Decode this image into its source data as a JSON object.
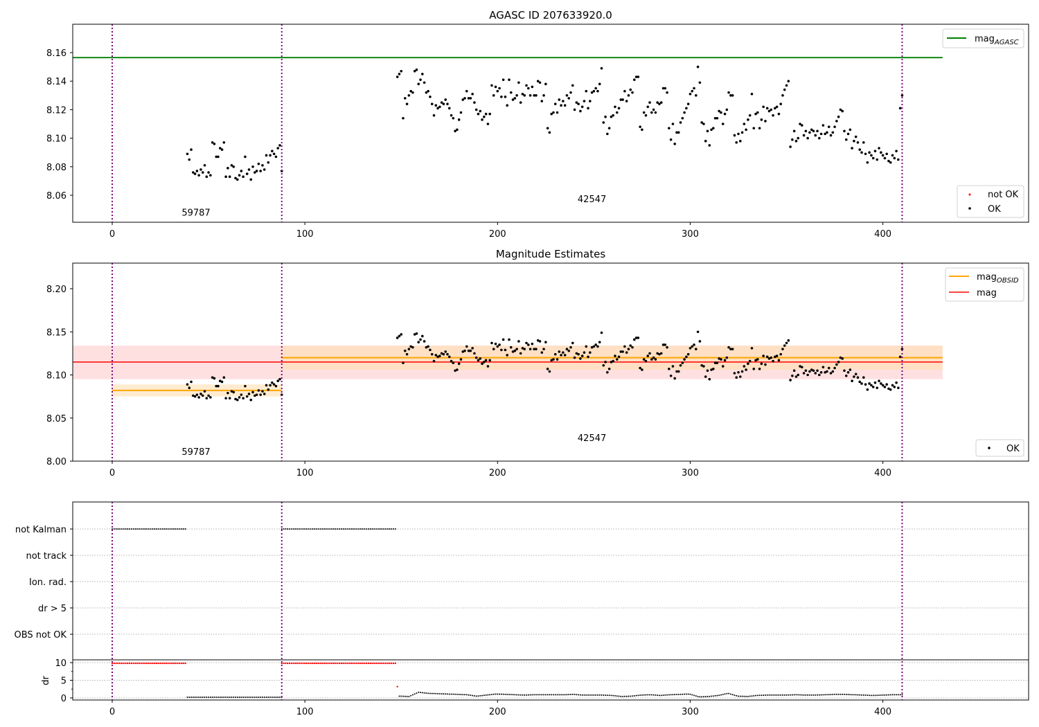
{
  "colors": {
    "ok": "#000000",
    "not_ok": "#ff0000",
    "agasc": "#008000",
    "obsid": "#ffa500",
    "mag": "#ff0000",
    "obs_lines": "#800080",
    "band_mag": "#ffcccc",
    "band_obsid": "#ffe0b0"
  },
  "chart_data": [
    {
      "type": "scatter",
      "title": "AGASC ID 207633920.0",
      "xlim": [
        -20.5,
        476
      ],
      "ylim": [
        8.041,
        8.18
      ],
      "xticks": [
        0,
        100,
        200,
        300,
        400
      ],
      "yticks": [
        "8.06",
        "8.08",
        "8.10",
        "8.12",
        "8.14",
        "8.16"
      ],
      "obs_boundaries": [
        0,
        88,
        410
      ],
      "mag_agasc": 8.1565,
      "mag_agasc_xrange": [
        -20.5,
        431
      ],
      "annotations": [
        {
          "text": "59787",
          "x": 43.5,
          "y": 8.048
        },
        {
          "text": "42547",
          "x": 249,
          "y": 8.0576
        }
      ],
      "legend_top": {
        "line_label": "mag",
        "line_sub": "AGASC"
      },
      "legend_bottom": [
        {
          "label": "not OK"
        },
        {
          "label": "OK"
        }
      ],
      "segments": [
        {
          "x_start": 39,
          "values": [
            8.089,
            8.085,
            8.092,
            8.076,
            8.075,
            8.077,
            8.074,
            8.078,
            8.076,
            8.081,
            8.073,
            8.076,
            8.074,
            8.097,
            8.096,
            8.087,
            8.087,
            8.093,
            8.092,
            8.097,
            8.073,
            8.079,
            8.073,
            8.081,
            8.08,
            8.072,
            8.071,
            8.074,
            8.077,
            8.073,
            8.087,
            8.075,
            8.078,
            8.071,
            8.08,
            8.076,
            8.077,
            8.082,
            8.077,
            8.081,
            8.078,
            8.088,
            8.083,
            8.088,
            8.091,
            8.089,
            8.087,
            8.093,
            8.095,
            8.077
          ]
        },
        {
          "x_start": 148,
          "values": [
            8.143,
            8.145,
            8.147,
            8.114,
            8.128,
            8.124,
            8.13,
            8.133,
            8.132,
            8.147,
            8.148,
            8.138,
            8.141,
            8.145,
            8.139,
            8.132,
            8.133,
            8.129,
            8.124,
            8.116,
            8.123,
            8.121,
            8.122,
            8.125,
            8.124,
            8.127,
            8.124,
            8.121,
            8.116,
            8.114,
            8.105,
            8.106,
            8.113,
            8.118,
            8.127,
            8.128,
            8.133,
            8.128,
            8.128,
            8.131,
            8.125,
            8.12,
            8.117,
            8.119,
            8.113,
            8.115,
            8.117,
            8.11,
            8.117,
            8.137,
            8.13,
            8.136,
            8.133,
            8.135,
            8.129,
            8.141,
            8.129,
            8.123,
            8.141,
            8.132,
            8.127,
            8.128,
            8.13,
            8.139,
            8.125,
            8.131,
            8.13,
            8.137,
            8.135,
            8.13,
            8.136,
            8.13,
            8.13,
            8.14,
            8.139,
            8.126,
            8.13,
            8.138,
            8.107,
            8.104,
            8.117,
            8.118,
            8.124,
            8.118,
            8.127,
            8.123,
            8.126,
            8.123,
            8.13,
            8.128,
            8.132,
            8.137,
            8.12,
            8.125,
            8.124,
            8.119,
            8.122,
            8.126,
            8.133,
            8.121,
            8.126,
            8.132,
            8.133,
            8.135,
            8.133,
            8.138,
            8.149,
            8.111,
            8.115,
            8.103,
            8.107,
            8.115,
            8.116,
            8.122,
            8.118,
            8.121,
            8.127,
            8.127,
            8.133,
            8.126,
            8.13,
            8.134,
            8.132,
            8.141,
            8.143,
            8.143,
            8.108,
            8.106,
            8.118,
            8.116,
            8.122,
            8.125,
            8.118,
            8.12,
            8.118,
            8.125,
            8.124,
            8.125,
            8.135,
            8.135,
            8.132,
            8.107,
            8.099,
            8.11,
            8.096,
            8.104,
            8.104,
            8.111,
            8.114,
            8.118,
            8.121,
            8.124,
            8.131,
            8.133,
            8.135,
            8.13,
            8.15,
            8.139,
            8.111,
            8.11,
            8.098,
            8.105,
            8.095,
            8.106,
            8.107,
            8.114,
            8.114,
            8.119,
            8.118,
            8.11,
            8.117,
            8.12,
            8.132,
            8.13,
            8.13,
            8.102,
            8.097,
            8.103,
            8.098,
            8.104,
            8.11,
            8.106,
            8.113,
            8.116,
            8.131,
            8.107,
            8.117,
            8.118,
            8.107,
            8.113,
            8.122,
            8.112,
            8.121,
            8.119,
            8.12,
            8.116,
            8.121,
            8.122,
            8.117,
            8.124,
            8.13,
            8.134,
            8.137,
            8.14,
            8.094,
            8.099,
            8.105,
            8.098,
            8.1,
            8.11,
            8.109,
            8.102,
            8.105,
            8.1,
            8.104,
            8.106,
            8.105,
            8.102,
            8.105,
            8.1,
            8.103,
            8.109,
            8.103,
            8.104,
            8.108,
            8.102,
            8.104,
            8.108,
            8.112,
            8.115,
            8.12,
            8.119,
            8.105,
            8.099,
            8.103,
            8.106,
            8.093,
            8.098,
            8.101,
            8.097,
            8.092,
            8.09,
            8.097,
            8.089,
            8.083,
            8.09,
            8.088,
            8.086,
            8.091,
            8.085,
            8.093,
            8.09,
            8.088,
            8.086,
            8.089,
            8.084,
            8.083,
            8.088,
            8.086,
            8.091,
            8.085,
            8.121,
            8.13
          ]
        }
      ]
    },
    {
      "type": "scatter",
      "title": "Magnitude Estimates",
      "xlim": [
        -20.5,
        476
      ],
      "ylim": [
        8.0,
        8.23
      ],
      "yticks": [
        "8.00",
        "8.05",
        "8.10",
        "8.15",
        "8.20"
      ],
      "xticks": [
        0,
        100,
        200,
        300,
        400
      ],
      "mag": {
        "value": 8.115,
        "band": [
          8.095,
          8.134
        ],
        "xrange": [
          -20.5,
          431
        ]
      },
      "mag_obsid": [
        {
          "value": 8.082,
          "band": [
            8.075,
            8.089
          ],
          "xrange": [
            0,
            88
          ]
        },
        {
          "value": 8.12,
          "band": [
            8.106,
            8.134
          ],
          "xrange": [
            88,
            431
          ]
        }
      ],
      "annotations": [
        {
          "text": "59787",
          "x": 43.5,
          "y": 8.0112
        },
        {
          "text": "42547",
          "x": 249,
          "y": 8.0273
        }
      ],
      "legend_top": [
        {
          "label": "mag",
          "sub": "OBSID"
        },
        {
          "label": "mag",
          "sub": ""
        }
      ],
      "legend_bottom": [
        {
          "label": "OK"
        }
      ],
      "data_source": "same points as AGASC panel"
    },
    {
      "type": "scatter",
      "flag_rows": [
        "not Kalman",
        "not track",
        "Ion. rad.",
        "dr > 5",
        "OBS not OK"
      ],
      "flags": {
        "not Kalman": [
          [
            0,
            38
          ],
          [
            88,
            147
          ]
        ]
      },
      "dr_label": "dr",
      "dr_yticks": [
        "0",
        "5",
        "10"
      ],
      "dr_ylim": [
        -0.6,
        10.8
      ],
      "xticks": [
        0,
        100,
        200,
        300,
        400
      ],
      "dr_segments": [
        {
          "x_start": 0,
          "x_end": 38,
          "dr": 9.8,
          "status": "not OK"
        },
        {
          "x_start": 39,
          "x_end": 88,
          "dr": 0.2,
          "status": "OK"
        },
        {
          "x_start": 88,
          "x_end": 147,
          "dr": 9.8,
          "status": "not OK"
        },
        {
          "x_start": 148,
          "x_end": 148,
          "dr": 3.2,
          "status": "not OK"
        },
        {
          "x_start": 149,
          "x_end": 410,
          "dr_profile": [
            0.5,
            0.4,
            1.6,
            1.3,
            1.2,
            1.1,
            1.0,
            0.9,
            0.5,
            0.8,
            1.1,
            1.0,
            0.9,
            0.8,
            0.9,
            0.9,
            0.9,
            0.9,
            1.0,
            0.8,
            0.8,
            0.8,
            0.7,
            0.4,
            0.5,
            0.8,
            0.9,
            0.7,
            0.9,
            1.0,
            1.1,
            0.3,
            0.4,
            0.7,
            1.3,
            0.5,
            0.4,
            0.7,
            0.8,
            0.8,
            0.8,
            0.9,
            0.8,
            0.8,
            0.9,
            1.0,
            1.0,
            0.9,
            0.8,
            0.7,
            0.8,
            0.9,
            0.9
          ],
          "status": "OK"
        }
      ]
    }
  ]
}
